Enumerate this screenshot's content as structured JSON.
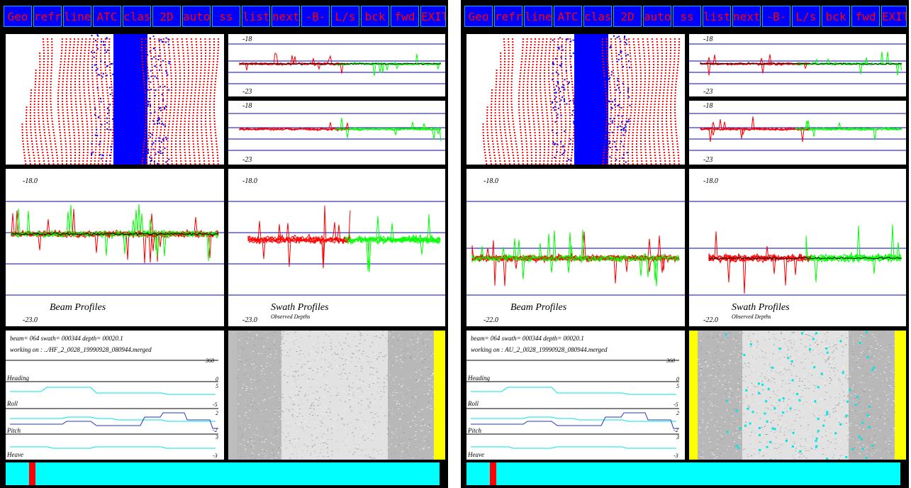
{
  "toolbar": {
    "buttons": [
      {
        "id": "geo",
        "label": "Geo"
      },
      {
        "id": "refr",
        "label": "refr"
      },
      {
        "id": "lines",
        "label": "lines"
      },
      {
        "id": "atc",
        "label": "ATC"
      },
      {
        "id": "class",
        "label": "class"
      },
      {
        "id": "2d",
        "label": "2D"
      },
      {
        "id": "auto",
        "label": "auto"
      },
      {
        "id": "ss",
        "label": "ss"
      },
      {
        "id": "list",
        "label": "list"
      },
      {
        "id": "next",
        "label": "next"
      },
      {
        "id": "b",
        "label": "-B-"
      },
      {
        "id": "ls",
        "label": "L/s"
      },
      {
        "id": "bck",
        "label": "bck"
      },
      {
        "id": "fwd",
        "label": "fwd"
      },
      {
        "id": "exit",
        "label": "EXIT"
      }
    ]
  },
  "colors": {
    "button_bg": "#0000ff",
    "button_text": "#ff0000",
    "port": "#ff0000",
    "starboard": "#00ff00",
    "center": "#0000ff",
    "gridline": "#0000cc",
    "attitude_cyan": "#00e5e5",
    "attitude_blue": "#2233cc",
    "status_bar": "#00ffff",
    "status_marker": "#ff0000",
    "sidescan_edge": "#ffff00"
  },
  "windows": [
    {
      "id": "left",
      "small_top_scale": "-18",
      "small_bottom_scale": "-23",
      "beam_top_scale": "-18.0",
      "beam_bottom_scale": "-23.0",
      "swath_top_scale": "-18.0",
      "swath_bottom_scale": "-23.0",
      "beam_title": "Beam Profiles",
      "swath_title": "Swath Profiles",
      "swath_subtitle": "Observed Depths",
      "info_line1": "beam= 064 swath= 000344 depth= 00020.1",
      "info_line2": "working on : ../HF_2_0028_19990928_080944.merged",
      "attitude": {
        "heading_label": "Heading",
        "roll_label": "Roll",
        "pitch_label": "Pitch",
        "heave_label": "Heave",
        "heading_max": "360",
        "heading_min": "0",
        "roll_max": "5",
        "roll_min": "-5",
        "pitch_max": "2",
        "pitch_min": "-2",
        "heave_max": "3",
        "heave_min": "-3"
      },
      "progress": 0.06
    },
    {
      "id": "right",
      "small_top_scale": "-18",
      "small_bottom_scale": "-23",
      "beam_top_scale": "-18.0",
      "beam_bottom_scale": "-22.0",
      "swath_top_scale": "-18.0",
      "swath_bottom_scale": "-22.0",
      "beam_title": "Beam Profiles",
      "swath_title": "Swath Profiles",
      "swath_subtitle": "Observed Depths",
      "info_line1": "beam= 064 swath= 000344 depth= 00020.1",
      "info_line2": "working on : AU_2_0028_19990928_080944.merged",
      "attitude": {
        "heading_label": "Heading",
        "roll_label": "Roll",
        "pitch_label": "Pitch",
        "heave_label": "Heave",
        "heading_max": "360",
        "heading_min": "0",
        "roll_max": "5",
        "roll_min": "-5",
        "pitch_max": "2",
        "pitch_min": "-2",
        "heave_max": "3",
        "heave_min": "-3"
      },
      "progress": 0.06
    }
  ]
}
